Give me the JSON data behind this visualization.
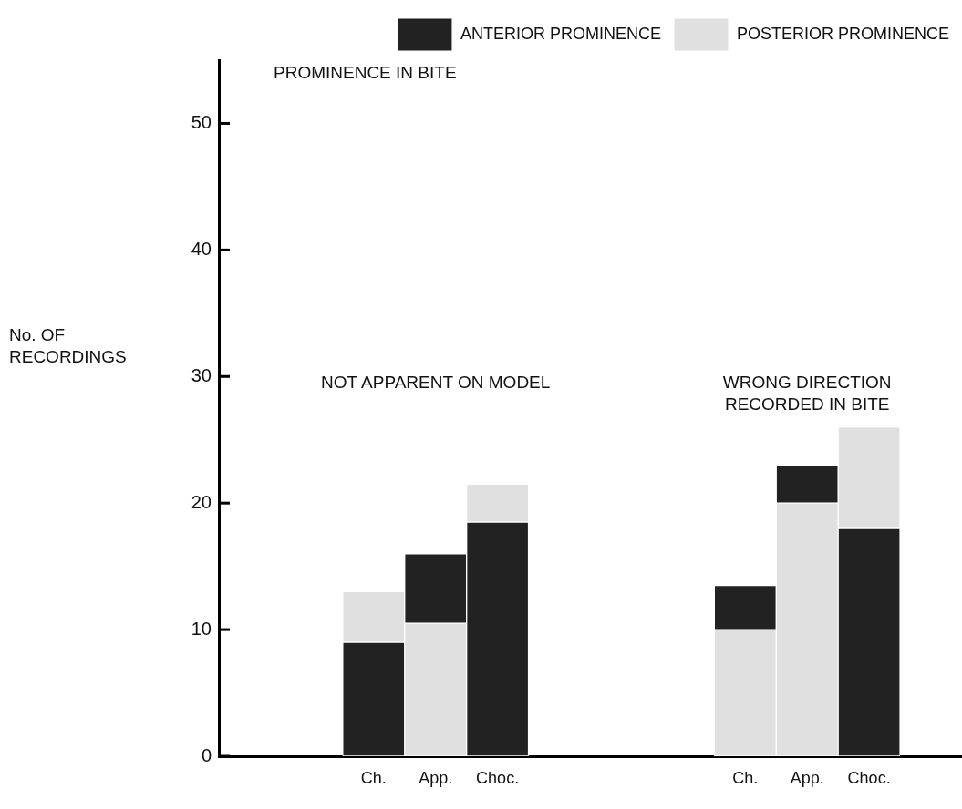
{
  "chart_data": {
    "type": "bar",
    "stacked": true,
    "title": "PROMINENCE IN BITE",
    "ylabel": "No. OF RECORDINGS",
    "categories": [
      null,
      null,
      "Ch.",
      "App.",
      "Choc.",
      null,
      null,
      null,
      "Ch.",
      "App.",
      "Choc.",
      null
    ],
    "series": [
      {
        "name": "ANTERIOR PROMINENCE",
        "color": "#222222",
        "values": [
          null,
          null,
          9,
          null,
          18.5,
          null,
          null,
          null,
          null,
          null,
          18,
          null
        ]
      },
      {
        "name": "POSTERIOR PROMINENCE",
        "color": "#e0e0e0",
        "values": [
          null,
          null,
          null,
          10.5,
          null,
          null,
          null,
          null,
          10,
          20,
          null,
          null
        ]
      },
      {
        "color": "#222222",
        "values": [
          null,
          null,
          null,
          5.5,
          null,
          null,
          null,
          null,
          3.5,
          3,
          null,
          null
        ]
      },
      {
        "color": "#e0e0e0",
        "values": [
          null,
          null,
          4,
          null,
          3,
          null,
          null,
          null,
          null,
          null,
          8,
          null
        ]
      }
    ],
    "ylim": [
      0,
      55
    ],
    "yticks": [
      0,
      10,
      20,
      30,
      40,
      50
    ],
    "grid": false,
    "legend": "top right",
    "annotations": [
      "NOT APPARENT ON MODEL",
      "WRONG DIRECTION RECORDED IN BITE"
    ]
  }
}
